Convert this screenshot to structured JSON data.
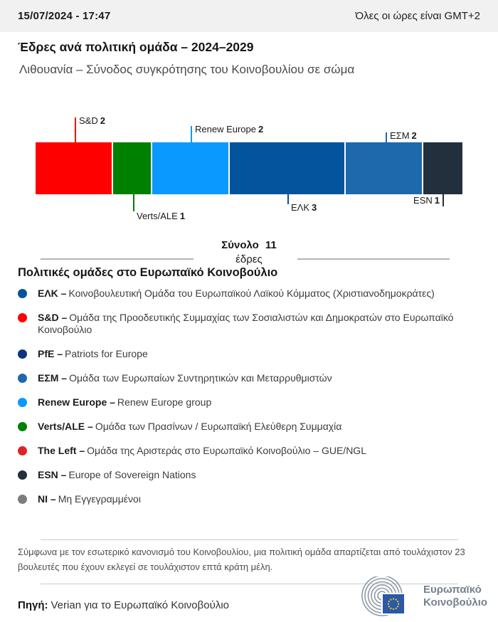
{
  "header": {
    "datetime": "15/07/2024 - 17:47",
    "timezone_note": "Όλες οι ώρες είναι GMT+2"
  },
  "title": "Έδρες ανά πολιτική ομάδα – 2024–2029",
  "subtitle": "Λιθουανία – Σύνοδος συγκρότησης του Κοινοβουλίου σε σώμα",
  "chart_data": {
    "type": "bar",
    "variant": "horizontal-stacked-seat-bar",
    "title": "Έδρες ανά πολιτική ομάδα – 2024–2029",
    "region": "Λιθουανία",
    "total_seats": 11,
    "total_label": "Σύνολο",
    "total_value": "11",
    "total_unit": "έδρες",
    "segments": [
      {
        "name": "S&D",
        "seats": 2,
        "color": "#fe0000",
        "callout": "above"
      },
      {
        "name": "Verts/ALE",
        "seats": 1,
        "color": "#008000",
        "callout": "below"
      },
      {
        "name": "Renew Europe",
        "seats": 2,
        "color": "#0999ff",
        "callout": "above"
      },
      {
        "name": "ΕΛΚ",
        "seats": 3,
        "color": "#03549c",
        "callout": "below"
      },
      {
        "name": "ΕΣΜ",
        "seats": 2,
        "color": "#1d69ab",
        "callout": "above"
      },
      {
        "name": "ESN",
        "seats": 1,
        "color": "#222f3c",
        "callout": "below"
      }
    ]
  },
  "legend": {
    "heading": "Πολιτικές ομάδες στο Ευρωπαϊκό Κοινοβούλιο",
    "items": [
      {
        "name": "ΕΛΚ –",
        "desc": "Κοινοβουλευτική Ομάδα του Ευρωπαϊκού Λαϊκού Κόμματος (Χριστιανοδημοκράτες)",
        "color": "#03549c"
      },
      {
        "name": "S&D –",
        "desc": "Ομάδα της Προοδευτικής Συμμαχίας των Σοσιαλιστών και Δημοκρατών στο Ευρωπαϊκό Κοινοβούλιο",
        "color": "#fe0000"
      },
      {
        "name": "PfE –",
        "desc": "Patriots for Europe",
        "color": "#0e3381"
      },
      {
        "name": "ΕΣΜ –",
        "desc": "Ομάδα των Ευρωπαίων Συντηρητικών και Μεταρρυθμιστών",
        "color": "#1d69ab"
      },
      {
        "name": "Renew Europe –",
        "desc": "Renew Europe group",
        "color": "#0999ff"
      },
      {
        "name": "Verts/ALE –",
        "desc": "Ομάδα των Πρασίνων / Ευρωπαϊκή Ελεύθερη Συμμαχία",
        "color": "#008000"
      },
      {
        "name": "The Left –",
        "desc": "Ομάδα της Αριστεράς στο Ευρωπαϊκό Κοινοβούλιο – GUE/NGL",
        "color": "#de2326"
      },
      {
        "name": "ESN –",
        "desc": "Europe of Sovereign Nations",
        "color": "#222f3c"
      },
      {
        "name": "NI –",
        "desc": "Μη Εγγεγραμμένοι",
        "color": "#7d7d7d"
      }
    ]
  },
  "footer": {
    "note": "Σύμφωνα με τον εσωτερικό κανονισμό του Κοινοβουλίου, μια πολιτική ομάδα απαρτίζεται από τουλάχιστον 23 βουλευτές που έχουν εκλεγεί σε τουλάχιστον επτά κράτη μέλη.",
    "source_label": "Πηγή:",
    "source_text": "Verian για το Ευρωπαϊκό Κοινοβούλιο",
    "logo_line1": "Ευρωπαϊκό",
    "logo_line2": "Κοινοβούλιο"
  }
}
